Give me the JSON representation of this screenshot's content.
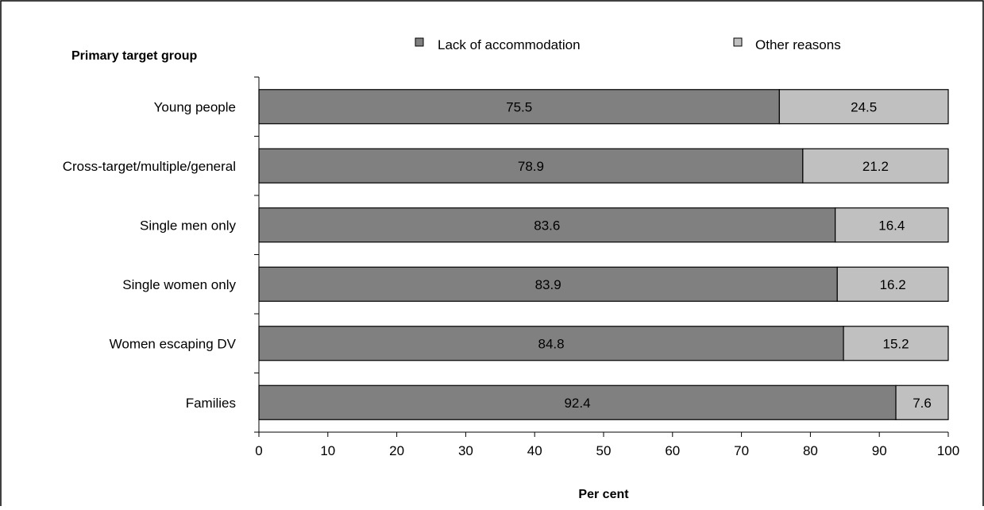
{
  "chart_data": {
    "type": "bar",
    "orientation": "horizontal",
    "stacked": true,
    "ylabel": "Primary target group",
    "xlabel": "Per cent",
    "xlim": [
      0,
      100
    ],
    "x_ticks": [
      0,
      10,
      20,
      30,
      40,
      50,
      60,
      70,
      80,
      90,
      100
    ],
    "categories": [
      "Young people",
      "Cross-target/multiple/general",
      "Single men only",
      "Single women only",
      "Women escaping DV",
      "Families"
    ],
    "series": [
      {
        "name": "Lack of accommodation",
        "color": "#808080",
        "values": [
          75.5,
          78.9,
          83.6,
          83.9,
          84.8,
          92.4
        ],
        "labels": [
          "75.5",
          "78.9",
          "83.6",
          "83.9",
          "84.8",
          "92.4"
        ]
      },
      {
        "name": "Other reasons",
        "color": "#c0c0c0",
        "values": [
          24.5,
          21.2,
          16.4,
          16.2,
          15.2,
          7.6
        ],
        "labels": [
          "24.5",
          "21.2",
          "16.4",
          "16.2",
          "15.2",
          "7.6"
        ]
      }
    ],
    "legend_position": "top",
    "grid": false
  }
}
